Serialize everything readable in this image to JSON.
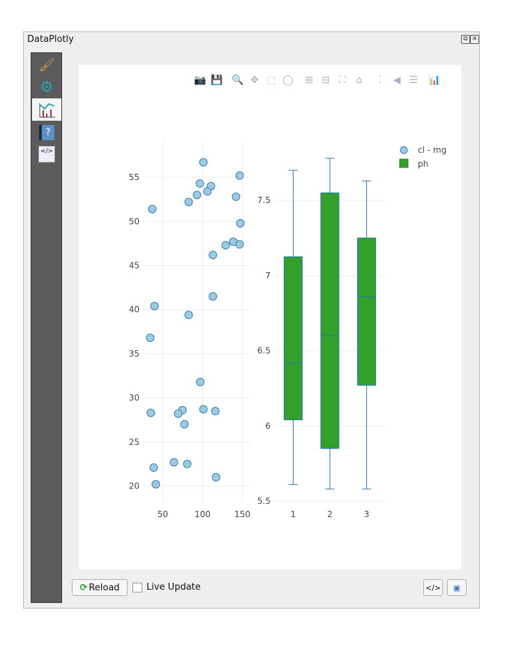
{
  "window": {
    "title": "DataPlotly",
    "float_icon": "float-icon",
    "close_icon": "close-icon"
  },
  "sidebar": {
    "items": [
      {
        "name": "properties",
        "icon": "brush-icon",
        "glyph": "🖌"
      },
      {
        "name": "settings",
        "icon": "gears-icon",
        "glyph": "⚙"
      },
      {
        "name": "plot",
        "icon": "chart-icon",
        "glyph": "📈",
        "active": true
      },
      {
        "name": "help",
        "icon": "help-book-icon",
        "glyph": "?"
      },
      {
        "name": "code",
        "icon": "code-icon",
        "glyph": "</>"
      }
    ]
  },
  "toolbar": {
    "tools": [
      {
        "name": "download-png",
        "icon": "camera-icon",
        "glyph": "📷"
      },
      {
        "name": "save",
        "icon": "save-icon",
        "glyph": "💾"
      },
      {
        "name": "zoom",
        "icon": "zoom-icon",
        "glyph": "🔍",
        "active": true
      },
      {
        "name": "pan",
        "icon": "pan-icon",
        "glyph": "✥"
      },
      {
        "name": "box-select",
        "icon": "box-select-icon",
        "glyph": "⬚"
      },
      {
        "name": "lasso-select",
        "icon": "lasso-icon",
        "glyph": "◯"
      },
      {
        "name": "zoom-in",
        "icon": "zoom-in-icon",
        "glyph": "⊞"
      },
      {
        "name": "zoom-out",
        "icon": "zoom-out-icon",
        "glyph": "⊟"
      },
      {
        "name": "autoscale",
        "icon": "autoscale-icon",
        "glyph": "⛶"
      },
      {
        "name": "reset-axes",
        "icon": "home-icon",
        "glyph": "⌂"
      },
      {
        "name": "spike-lines",
        "icon": "spikelines-icon",
        "glyph": "⁚"
      },
      {
        "name": "hover-closest",
        "icon": "hover-closest-icon",
        "glyph": "◀"
      },
      {
        "name": "hover-compare",
        "icon": "hover-compare-icon",
        "glyph": "☰"
      },
      {
        "name": "plotly-logo",
        "icon": "plotly-logo-icon",
        "glyph": "📊"
      }
    ]
  },
  "bottom": {
    "reload_label": "Reload",
    "live_update_label": "Live Update",
    "live_update_checked": false,
    "export_html_icon": "export-html-icon",
    "export_image_icon": "export-image-icon"
  },
  "chart_data": [
    {
      "type": "scatter",
      "name": "cl - mg",
      "color": "#9ecae1",
      "edge": "#2c7fb8",
      "xlim": [
        26,
        160
      ],
      "ylim": [
        18.3,
        59.2
      ],
      "xticks": [
        50,
        100,
        150
      ],
      "yticks": [
        20,
        25,
        30,
        35,
        40,
        45,
        50,
        55
      ],
      "grid": true,
      "x": [
        101,
        146.5,
        96.5,
        110.5,
        93,
        106,
        142,
        82.5,
        36.8,
        147.4,
        129,
        138.6,
        146.5,
        113,
        113,
        39.5,
        82.5,
        34.2,
        97,
        35,
        74.6,
        69.3,
        101,
        116,
        77.2,
        64,
        80.7,
        38.6,
        41.2,
        116.9
      ],
      "y": [
        56.7,
        55.2,
        54.3,
        54.0,
        53.0,
        53.4,
        52.8,
        52.2,
        51.4,
        49.8,
        47.3,
        47.7,
        47.4,
        46.2,
        41.5,
        40.4,
        39.4,
        36.8,
        31.8,
        28.3,
        28.6,
        28.2,
        28.7,
        28.5,
        27.0,
        22.7,
        22.5,
        22.1,
        20.2,
        21.0
      ]
    },
    {
      "type": "box",
      "name": "ph",
      "color": "#33a02c",
      "edge": "#1f77b4",
      "categories": [
        "1",
        "2",
        "3"
      ],
      "ylim": [
        5.5,
        7.9
      ],
      "yticks": [
        "5.5",
        "6",
        "6.5",
        "7",
        "7.5"
      ],
      "grid": true,
      "boxes": [
        {
          "min": 5.61,
          "q1": 6.04,
          "median": 6.42,
          "q3": 7.125,
          "max": 7.7
        },
        {
          "min": 5.58,
          "q1": 5.85,
          "median": 6.6,
          "q3": 7.55,
          "max": 7.78
        },
        {
          "min": 5.58,
          "q1": 6.27,
          "median": 6.86,
          "q3": 7.25,
          "max": 7.63
        }
      ]
    }
  ],
  "legend": {
    "position": "top-right",
    "items": [
      "cl - mg",
      "ph"
    ]
  }
}
